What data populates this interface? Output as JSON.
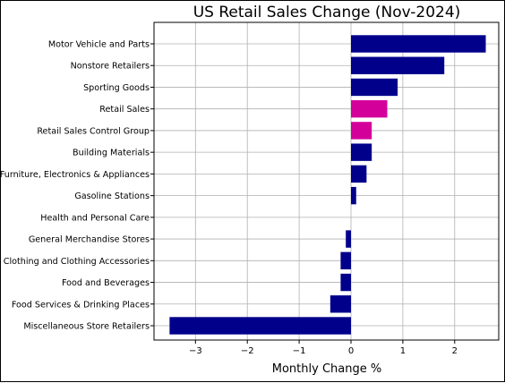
{
  "chart_data": {
    "type": "bar",
    "orientation": "horizontal",
    "title": "US Retail Sales Change (Nov-2024)",
    "xlabel": "Monthly Change %",
    "ylabel": "",
    "xlim": [
      -3.8,
      2.85
    ],
    "xticks": [
      -3,
      -2,
      -1,
      0,
      1,
      2
    ],
    "xtick_labels": [
      "−3",
      "−2",
      "−1",
      "0",
      "1",
      "2"
    ],
    "grid": true,
    "categories": [
      "Motor Vehicle and Parts",
      "Nonstore Retailers",
      "Sporting Goods",
      "Retail Sales",
      "Retail Sales Control Group",
      "Building Materials",
      "Furniture, Electronics & Appliances",
      "Gasoline Stations",
      "Health and Personal Care",
      "General Merchandise Stores",
      "Clothing and Clothing Accessories",
      "Food and Beverages",
      "Food Services & Drinking Places",
      "Miscellaneous Store Retailers"
    ],
    "values": [
      2.6,
      1.8,
      0.9,
      0.7,
      0.4,
      0.4,
      0.3,
      0.1,
      0.0,
      -0.1,
      -0.2,
      -0.2,
      -0.4,
      -3.5
    ],
    "colors": [
      "#00008b",
      "#00008b",
      "#00008b",
      "#d4009a",
      "#d4009a",
      "#00008b",
      "#00008b",
      "#00008b",
      "#00008b",
      "#00008b",
      "#00008b",
      "#00008b",
      "#00008b",
      "#00008b"
    ]
  }
}
